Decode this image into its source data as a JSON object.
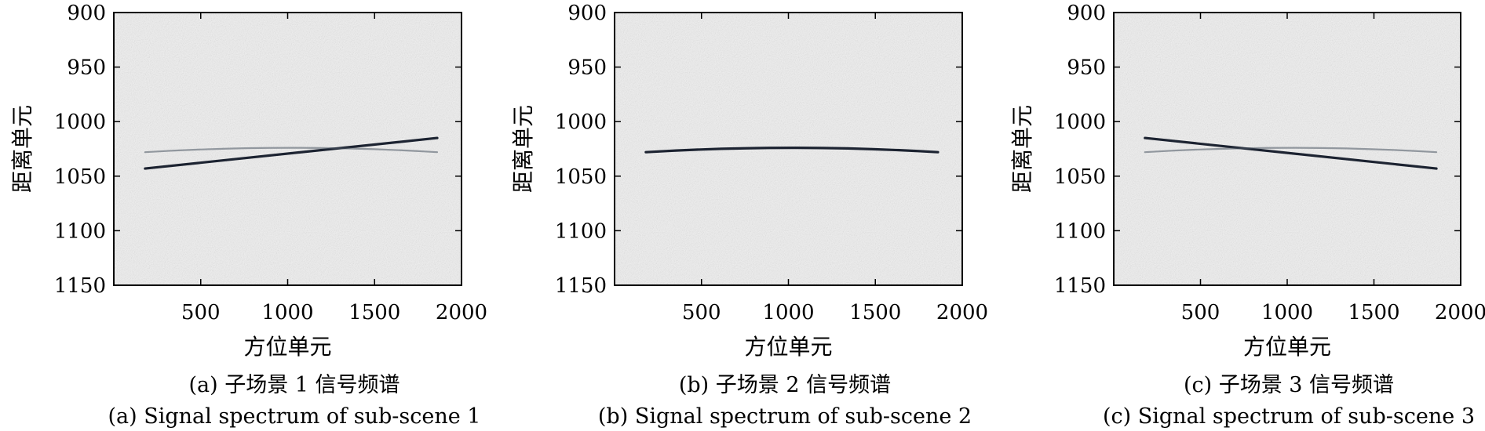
{
  "figure": {
    "panels": [
      {
        "caption_cn": "(a) 子场景 1 信号频谱",
        "caption_en": "(a) Signal spectrum of sub-scene 1"
      },
      {
        "caption_cn": "(b) 子场景 2 信号频谱",
        "caption_en": "(b) Signal spectrum of sub-scene 2"
      },
      {
        "caption_cn": "(c) 子场景 3 信号频谱",
        "caption_en": "(c) Signal spectrum of sub-scene 3"
      }
    ]
  },
  "colors": {
    "background": "#f0f0f0",
    "strong_trace": "#111827",
    "weak_trace": "#4b5563"
  },
  "chart_data": [
    {
      "type": "heatmap",
      "xlabel": "方位单元",
      "ylabel": "距离单元",
      "xlim": [
        0,
        2000
      ],
      "ylim": [
        1150,
        900
      ],
      "xticks": [
        500,
        1000,
        1500,
        2000
      ],
      "yticks": [
        900,
        950,
        1000,
        1050,
        1100,
        1150
      ],
      "traces": [
        {
          "intensity": "strong",
          "x": [
            180,
            1860
          ],
          "y": [
            1043,
            1015
          ]
        },
        {
          "intensity": "weak",
          "x": [
            180,
            1020,
            1860
          ],
          "y": [
            1028,
            1024,
            1028
          ]
        }
      ]
    },
    {
      "type": "heatmap",
      "xlabel": "方位单元",
      "ylabel": "距离单元",
      "xlim": [
        0,
        2000
      ],
      "ylim": [
        1150,
        900
      ],
      "xticks": [
        500,
        1000,
        1500,
        2000
      ],
      "yticks": [
        900,
        950,
        1000,
        1050,
        1100,
        1150
      ],
      "traces": [
        {
          "intensity": "strong",
          "x": [
            180,
            1020,
            1860
          ],
          "y": [
            1028,
            1024,
            1028
          ]
        }
      ]
    },
    {
      "type": "heatmap",
      "xlabel": "方位单元",
      "ylabel": "距离单元",
      "xlim": [
        0,
        2000
      ],
      "ylim": [
        1150,
        900
      ],
      "xticks": [
        500,
        1000,
        1500,
        2000
      ],
      "yticks": [
        900,
        950,
        1000,
        1050,
        1100,
        1150
      ],
      "traces": [
        {
          "intensity": "strong",
          "x": [
            180,
            1860
          ],
          "y": [
            1015,
            1043
          ]
        },
        {
          "intensity": "weak",
          "x": [
            180,
            1020,
            1860
          ],
          "y": [
            1028,
            1024,
            1028
          ]
        }
      ]
    }
  ]
}
